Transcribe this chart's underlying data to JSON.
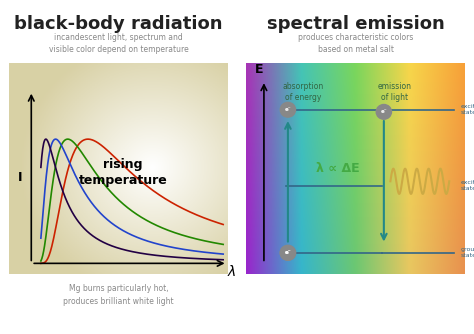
{
  "title_left": "black-body radiation",
  "title_right": "spectral emission",
  "subtitle_left": "incandescent light, spectrum and\nvisible color depend on temperature",
  "subtitle_right": "produces characteristic colors\nbased on metal salt",
  "caption_left": "Mg burns particularly hot,\nproduces brilliant white light",
  "rising_temp_text": "rising\ntemperature",
  "lambda_label": "λ",
  "I_label": "I",
  "E_label": "E",
  "absorption_text": "absorption\nof energy",
  "emission_text": "emission\nof light",
  "lambda_eq": "λ ∝ ΔE",
  "excited_state1": "excited\nstate",
  "excited_state2": "excited\nstate",
  "ground_state": "ground\nstate",
  "bg_color": "#ffffff",
  "title_color": "#222222",
  "subtitle_color": "#888888"
}
